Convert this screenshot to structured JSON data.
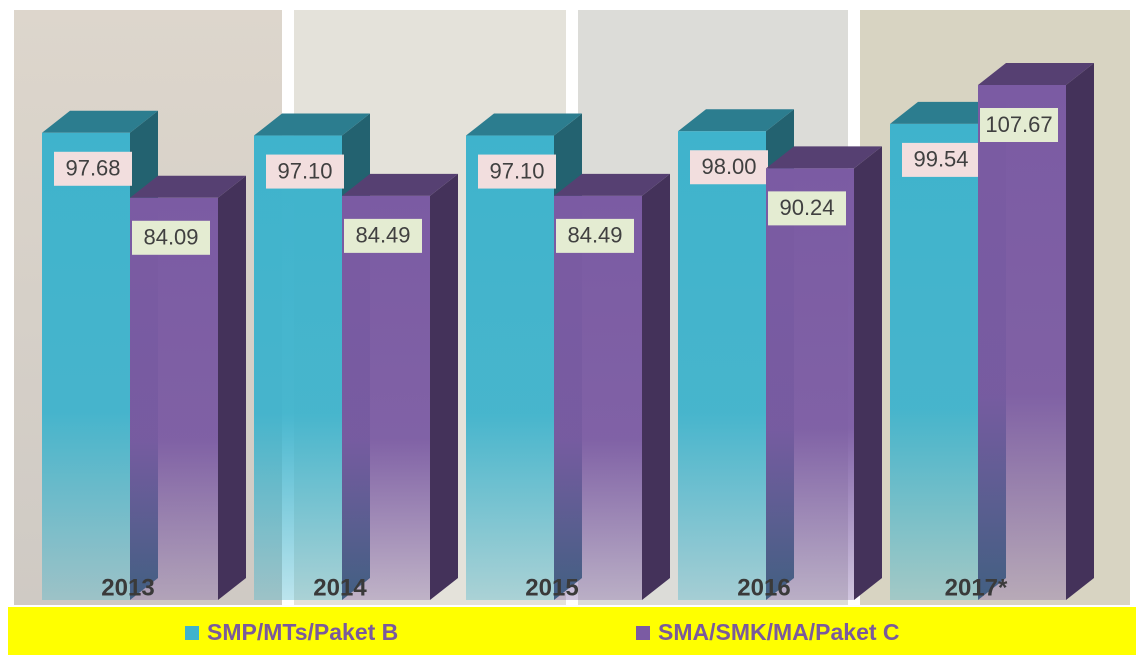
{
  "chart_data": {
    "type": "bar3d",
    "categories": [
      "2013",
      "2014",
      "2015",
      "2016",
      "2017*"
    ],
    "series": [
      {
        "name": "SMP/MTs/Paket B",
        "color": "#3fb3cc",
        "values": [
          97.68,
          97.1,
          97.1,
          98.0,
          99.54
        ],
        "value_labels": [
          "97.68",
          "97.10",
          "97.10",
          "98.00",
          "99.54"
        ]
      },
      {
        "name": "SMA/SMK/MA/Paket C",
        "color": "#7b5ba3",
        "values": [
          84.09,
          84.49,
          84.49,
          90.24,
          107.67
        ],
        "value_labels": [
          "84.09",
          "84.49",
          "84.49",
          "90.24",
          "107.67"
        ]
      }
    ]
  }
}
